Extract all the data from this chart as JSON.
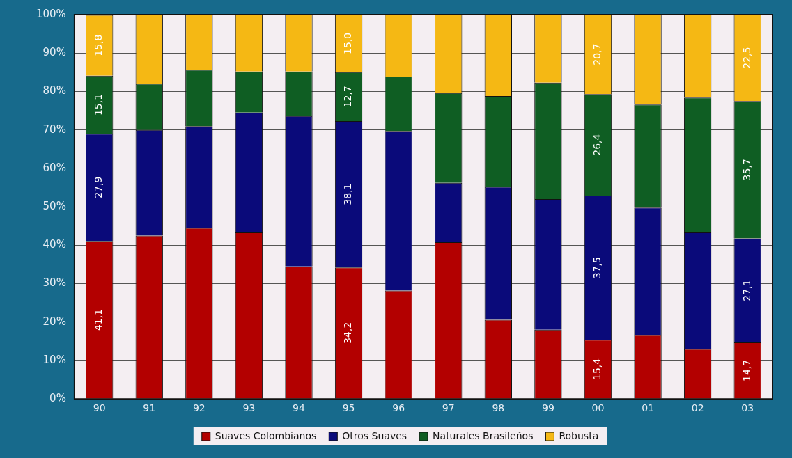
{
  "chart_data": {
    "type": "bar",
    "stacked": true,
    "categories": [
      "90",
      "91",
      "92",
      "93",
      "94",
      "95",
      "96",
      "97",
      "98",
      "99",
      "00",
      "01",
      "02",
      "03"
    ],
    "series": [
      {
        "name": "Suaves Colombianos",
        "color": "#b30000",
        "values": [
          41.1,
          42.5,
          44.5,
          43.3,
          34.5,
          34.2,
          28.2,
          40.8,
          20.6,
          18.0,
          15.4,
          16.6,
          13.0,
          14.7
        ],
        "value_labels": [
          "41,1",
          null,
          null,
          null,
          null,
          "34,2",
          null,
          null,
          null,
          null,
          "15,4",
          null,
          null,
          "14,7"
        ]
      },
      {
        "name": "Otros Suaves",
        "color": "#0a0a7a",
        "values": [
          27.9,
          27.5,
          26.5,
          31.2,
          39.1,
          38.1,
          41.5,
          15.4,
          34.6,
          34.0,
          37.5,
          33.2,
          30.3,
          27.1
        ],
        "value_labels": [
          "27,9",
          null,
          null,
          null,
          null,
          "38,1",
          null,
          null,
          null,
          null,
          "37,5",
          null,
          null,
          "27,1"
        ]
      },
      {
        "name": "Naturales Brasileños",
        "color": "#0f5e23",
        "values": [
          15.1,
          12.0,
          14.6,
          10.7,
          11.6,
          12.7,
          14.2,
          23.4,
          23.6,
          30.3,
          26.4,
          26.8,
          35.1,
          35.7
        ],
        "value_labels": [
          "15,1",
          null,
          null,
          null,
          null,
          "12,7",
          null,
          null,
          null,
          null,
          "26,4",
          null,
          null,
          "35,7"
        ]
      },
      {
        "name": "Robusta",
        "color": "#f5b814",
        "values": [
          15.8,
          18.0,
          14.4,
          14.8,
          14.8,
          15.0,
          16.1,
          20.4,
          21.2,
          17.7,
          20.7,
          23.4,
          21.6,
          22.5
        ],
        "value_labels": [
          "15,8",
          null,
          null,
          null,
          null,
          "15,0",
          null,
          null,
          null,
          null,
          "20,7",
          null,
          null,
          "22,5"
        ]
      }
    ],
    "ylim": [
      0,
      100
    ],
    "yticks": [
      {
        "value": 0,
        "label": "0%"
      },
      {
        "value": 10,
        "label": "10%"
      },
      {
        "value": 20,
        "label": "20%"
      },
      {
        "value": 30,
        "label": "30%"
      },
      {
        "value": 40,
        "label": "40%"
      },
      {
        "value": 50,
        "label": "50%"
      },
      {
        "value": 60,
        "label": "60%"
      },
      {
        "value": 70,
        "label": "70%"
      },
      {
        "value": 80,
        "label": "80%"
      },
      {
        "value": 90,
        "label": "90%"
      },
      {
        "value": 100,
        "label": "100%"
      }
    ],
    "grid": "y",
    "legend": "bottom"
  }
}
